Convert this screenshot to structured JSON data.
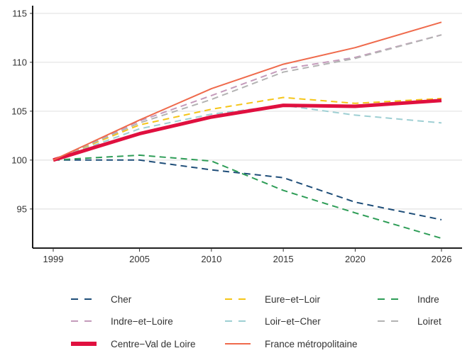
{
  "chart_data": {
    "type": "line",
    "title": "",
    "xlabel": "",
    "ylabel": "",
    "x": [
      1999,
      2005,
      2010,
      2015,
      2020,
      2026
    ],
    "x_ticks": [
      "1999",
      "2005",
      "2010",
      "2015",
      "2020",
      "2026"
    ],
    "xlim": [
      1999,
      2026
    ],
    "ylim": [
      91,
      115.5
    ],
    "y_ticks": [
      95,
      100,
      105,
      110,
      115
    ],
    "grid": "horizontal",
    "legend_position": "bottom",
    "series": [
      {
        "name": "Cher",
        "color": "#1f4e79",
        "style": "dashed",
        "values": [
          100,
          100,
          99,
          98.2,
          95.7,
          93.9
        ]
      },
      {
        "name": "Eure−et−Loir",
        "color": "#f5c518",
        "style": "dashed",
        "values": [
          100,
          103.6,
          105.2,
          106.4,
          105.8,
          106.3
        ]
      },
      {
        "name": "Indre",
        "color": "#2e9d57",
        "style": "dashed",
        "values": [
          100,
          100.5,
          99.9,
          96.9,
          94.6,
          92
        ]
      },
      {
        "name": "Indre−et−Loire",
        "color": "#c49bbb",
        "style": "dashed",
        "values": [
          100,
          104,
          106.6,
          109.3,
          110.5,
          112.8
        ]
      },
      {
        "name": "Loir−et−Cher",
        "color": "#9ecfd3",
        "style": "dashed",
        "values": [
          100,
          103.2,
          104.7,
          105.6,
          104.6,
          103.8
        ]
      },
      {
        "name": "Loiret",
        "color": "#b3b3b3",
        "style": "dashed",
        "values": [
          100,
          103.8,
          106.2,
          109.0,
          110.4,
          112.8
        ]
      },
      {
        "name": "Centre−Val de Loire",
        "color": "#e0103f",
        "style": "thick",
        "values": [
          100,
          102.7,
          104.4,
          105.6,
          105.5,
          106.1
        ]
      },
      {
        "name": "France métropolitaine",
        "color": "#ef6a4c",
        "style": "solid",
        "values": [
          100,
          104.1,
          107.3,
          109.8,
          111.5,
          114.1
        ]
      }
    ]
  }
}
